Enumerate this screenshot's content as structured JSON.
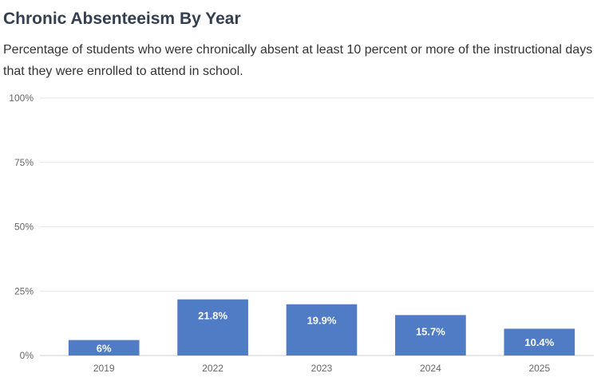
{
  "title": "Chronic Absenteeism By Year",
  "subtitle": "Percentage of students who were chronically absent at least 10 percent or more of the instructional days that they were enrolled to attend in school.",
  "colors": {
    "bar": "#4f7cc5",
    "grid": "#e6e6e6",
    "axis_text": "#666666",
    "bar_label": "#ffffff",
    "baseline": "#cccccc"
  },
  "chart_data": {
    "type": "bar",
    "categories": [
      "2019",
      "2022",
      "2023",
      "2024",
      "2025"
    ],
    "values": [
      6,
      21.8,
      19.9,
      15.7,
      10.4
    ],
    "data_labels": [
      "6%",
      "21.8%",
      "19.9%",
      "15.7%",
      "10.4%"
    ],
    "ylim": [
      0,
      100
    ],
    "yticks": [
      0,
      25,
      50,
      75,
      100
    ],
    "ytick_labels": [
      "0%",
      "25%",
      "50%",
      "75%",
      "100%"
    ],
    "grid": true,
    "legend": false
  }
}
